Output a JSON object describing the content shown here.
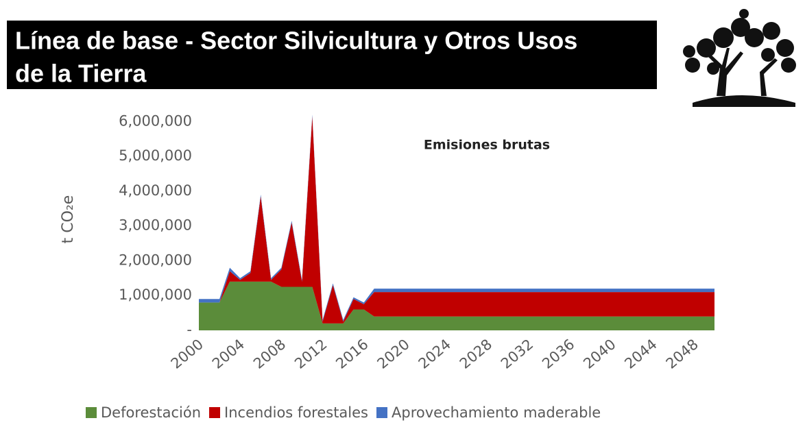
{
  "slide_title_lines": [
    "Línea de base - Sector Silvicultura y Otros Usos",
    "de la Tierra"
  ],
  "chart_data": {
    "type": "stacked-area",
    "title": "Emisiones brutas",
    "y_label": "t CO₂e",
    "x": [
      2000,
      2001,
      2002,
      2003,
      2004,
      2005,
      2006,
      2007,
      2008,
      2009,
      2010,
      2011,
      2012,
      2013,
      2014,
      2015,
      2016,
      2017,
      2018,
      2019,
      2020,
      2021,
      2022,
      2023,
      2024,
      2025,
      2026,
      2027,
      2028,
      2029,
      2030,
      2031,
      2032,
      2033,
      2034,
      2035,
      2036,
      2037,
      2038,
      2039,
      2040,
      2041,
      2042,
      2043,
      2044,
      2045,
      2046,
      2047,
      2048,
      2049,
      2050
    ],
    "xlim": [
      2000,
      2050
    ],
    "xticks": [
      2000,
      2004,
      2008,
      2012,
      2016,
      2020,
      2024,
      2028,
      2032,
      2036,
      2040,
      2044,
      2048
    ],
    "ylim": [
      0,
      6500000
    ],
    "yticks": [
      {
        "value": 0,
        "label": "-"
      },
      {
        "value": 1000000,
        "label": "1,000,000"
      },
      {
        "value": 2000000,
        "label": "2,000,000"
      },
      {
        "value": 3000000,
        "label": "3,000,000"
      },
      {
        "value": 4000000,
        "label": "4,000,000"
      },
      {
        "value": 5000000,
        "label": "5,000,000"
      },
      {
        "value": 6000000,
        "label": "6,000,000"
      }
    ],
    "grid": false,
    "legend_position": "bottom",
    "series": [
      {
        "name": "Deforestación",
        "color": "#5b8c3a",
        "values": [
          800000,
          800000,
          800000,
          1400000,
          1400000,
          1400000,
          1400000,
          1400000,
          1250000,
          1250000,
          1250000,
          1250000,
          200000,
          200000,
          200000,
          600000,
          600000,
          400000,
          400000,
          400000,
          400000,
          400000,
          400000,
          400000,
          400000,
          400000,
          400000,
          400000,
          400000,
          400000,
          400000,
          400000,
          400000,
          400000,
          400000,
          400000,
          400000,
          400000,
          400000,
          400000,
          400000,
          400000,
          400000,
          400000,
          400000,
          400000,
          400000,
          400000,
          400000,
          400000,
          400000
        ]
      },
      {
        "name": "Incendios forestales",
        "color": "#c00000",
        "values": [
          0,
          0,
          0,
          300000,
          50000,
          250000,
          2450000,
          50000,
          500000,
          1850000,
          150000,
          4900000,
          50000,
          1100000,
          50000,
          300000,
          150000,
          700000,
          700000,
          700000,
          700000,
          700000,
          700000,
          700000,
          700000,
          700000,
          700000,
          700000,
          700000,
          700000,
          700000,
          700000,
          700000,
          700000,
          700000,
          700000,
          700000,
          700000,
          700000,
          700000,
          700000,
          700000,
          700000,
          700000,
          700000,
          700000,
          700000,
          700000,
          700000,
          700000,
          700000
        ]
      },
      {
        "name": "Aprovechamiento maderable",
        "color": "#4472c4",
        "values": [
          100000,
          100000,
          100000,
          100000,
          50000,
          50000,
          50000,
          50000,
          50000,
          50000,
          50000,
          50000,
          50000,
          50000,
          50000,
          50000,
          50000,
          100000,
          100000,
          100000,
          100000,
          100000,
          100000,
          100000,
          100000,
          100000,
          100000,
          100000,
          100000,
          100000,
          100000,
          100000,
          100000,
          100000,
          100000,
          100000,
          100000,
          100000,
          100000,
          100000,
          100000,
          100000,
          100000,
          100000,
          100000,
          100000,
          100000,
          100000,
          100000,
          100000,
          100000
        ]
      }
    ]
  }
}
